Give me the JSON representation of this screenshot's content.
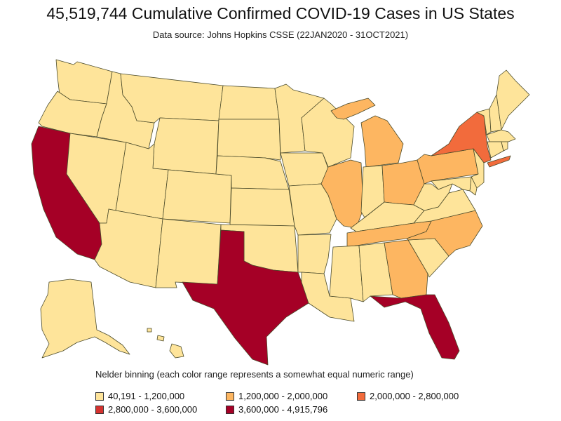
{
  "title": "45,519,744 Cumulative Confirmed COVID-19 Cases in US States",
  "subtitle": "Data source: Johns Hopkins CSSE (22JAN2020 - 31OCT2021)",
  "legend": {
    "title": "Nelder binning (each color range represents a somewhat equal numeric range)",
    "items": [
      {
        "label": "40,191 - 1,200,000",
        "color": "#FEE49A"
      },
      {
        "label": "1,200,000 - 2,000,000",
        "color": "#FDB661"
      },
      {
        "label": "2,000,000 - 2,800,000",
        "color": "#F26B3C"
      },
      {
        "label": "2,800,000 - 3,600,000",
        "color": "#D5322F"
      },
      {
        "label": "3,600,000 - 4,915,796",
        "color": "#A50026"
      }
    ]
  },
  "states": {
    "WA": 0,
    "OR": 0,
    "CA": 4,
    "NV": 0,
    "ID": 0,
    "MT": 0,
    "WY": 0,
    "UT": 0,
    "AZ": 0,
    "CO": 0,
    "NM": 0,
    "ND": 0,
    "SD": 0,
    "NE": 0,
    "KS": 0,
    "OK": 0,
    "TX": 4,
    "MN": 0,
    "IA": 0,
    "MO": 0,
    "AR": 0,
    "LA": 0,
    "WI": 0,
    "IL": 1,
    "MI": 1,
    "IN": 0,
    "OH": 1,
    "KY": 0,
    "TN": 1,
    "MS": 0,
    "AL": 0,
    "GA": 1,
    "FL": 4,
    "SC": 0,
    "NC": 1,
    "VA": 0,
    "WV": 0,
    "PA": 1,
    "NY": 2,
    "VT": 0,
    "NH": 0,
    "ME": 0,
    "MA": 0,
    "CT": 0,
    "RI": 0,
    "NJ": 0,
    "DE": 0,
    "MD": 0,
    "AK": 0,
    "HI": 0
  }
}
